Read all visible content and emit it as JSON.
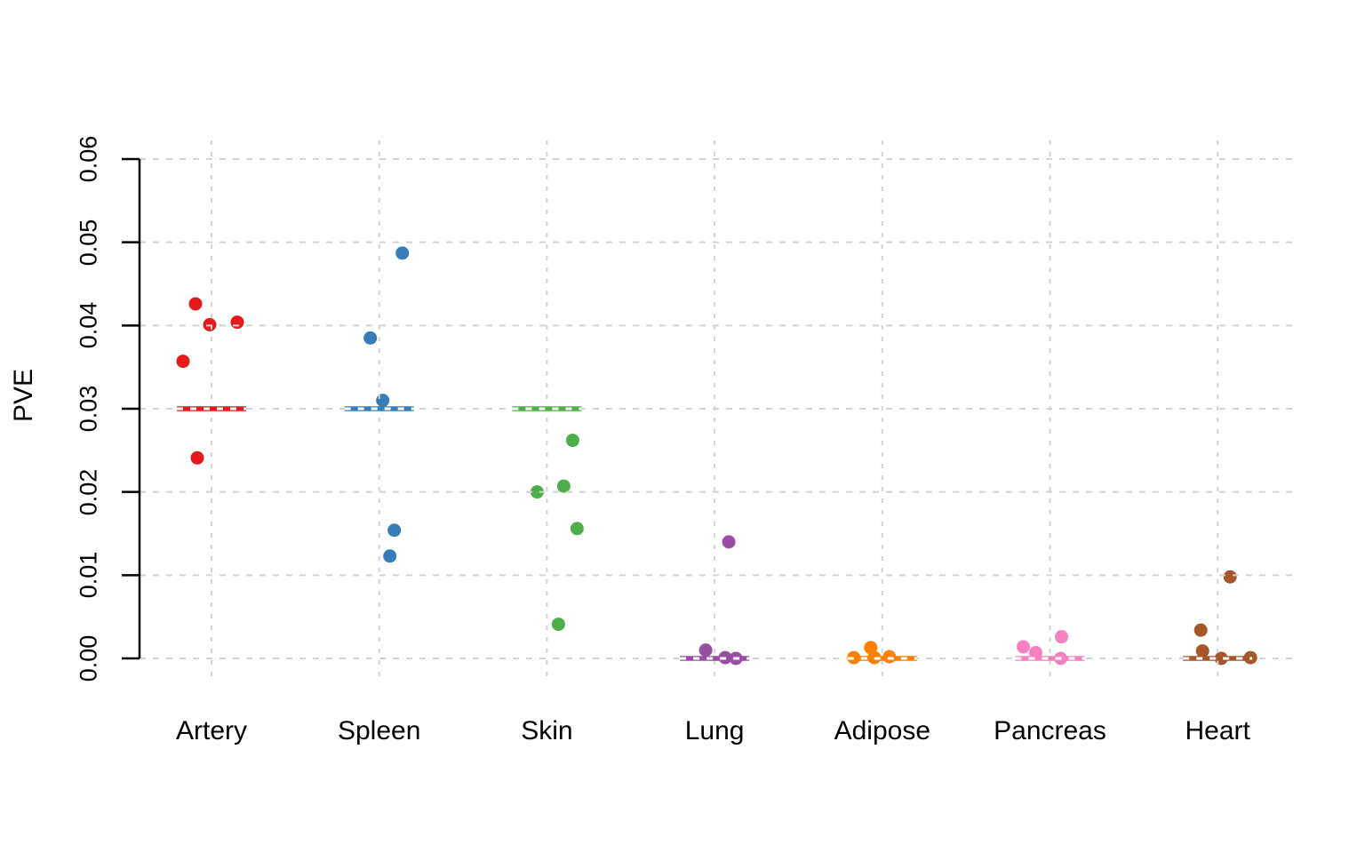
{
  "figure": {
    "background_color": "#ffffff",
    "axis_color": "#000000",
    "grid_color": "#d3d3d3",
    "text_color": "#000000"
  },
  "chart_data": {
    "type": "scatter",
    "subtype": "stripchart",
    "title": "",
    "xlabel": "",
    "ylabel": "PVE",
    "ylim": [
      0,
      0.06
    ],
    "grid": "dashed",
    "legend_position": "none",
    "ytick_values": [
      0,
      0.01,
      0.02,
      0.03,
      0.04,
      0.05,
      0.06
    ],
    "ytick_labels": [
      "0.00",
      "0.01",
      "0.02",
      "0.03",
      "0.04",
      "0.05",
      "0.06"
    ],
    "categories": [
      "Artery",
      "Spleen",
      "Skin",
      "Lung",
      "Adipose",
      "Pancreas",
      "Heart"
    ],
    "series": [
      {
        "name": "Artery",
        "color": "#E41A1C",
        "reference_value": 0.03,
        "points": [
          {
            "x_offset": -18,
            "pve": 0.0426
          },
          {
            "x_offset": -2,
            "pve": 0.0401
          },
          {
            "x_offset": 29,
            "pve": 0.0404
          },
          {
            "x_offset": -32,
            "pve": 0.0357
          },
          {
            "x_offset": -16,
            "pve": 0.0241
          }
        ]
      },
      {
        "name": "Spleen",
        "color": "#377EB8",
        "reference_value": 0.03,
        "points": [
          {
            "x_offset": 26,
            "pve": 0.0487
          },
          {
            "x_offset": -10,
            "pve": 0.0385
          },
          {
            "x_offset": 4,
            "pve": 0.031
          },
          {
            "x_offset": 17,
            "pve": 0.0154
          },
          {
            "x_offset": 12,
            "pve": 0.0123
          }
        ]
      },
      {
        "name": "Skin",
        "color": "#4DAF4A",
        "reference_value": 0.03,
        "points": [
          {
            "x_offset": 29,
            "pve": 0.0262
          },
          {
            "x_offset": 19,
            "pve": 0.0207
          },
          {
            "x_offset": -11,
            "pve": 0.02
          },
          {
            "x_offset": 34,
            "pve": 0.0156
          },
          {
            "x_offset": 13,
            "pve": 0.0041
          }
        ]
      },
      {
        "name": "Lung",
        "color": "#984EA3",
        "reference_value": 0,
        "points": [
          {
            "x_offset": 16,
            "pve": 0.014
          },
          {
            "x_offset": -10,
            "pve": 0.001
          },
          {
            "x_offset": 12,
            "pve": 0.0001
          },
          {
            "x_offset": 24,
            "pve": 0.0
          }
        ]
      },
      {
        "name": "Adipose",
        "color": "#FF7F00",
        "reference_value": 0,
        "points": [
          {
            "x_offset": -13,
            "pve": 0.0013
          },
          {
            "x_offset": -32,
            "pve": 0.0001
          },
          {
            "x_offset": -9,
            "pve": 0.0001
          },
          {
            "x_offset": 8,
            "pve": 0.0002
          }
        ]
      },
      {
        "name": "Pancreas",
        "color": "#F781BF",
        "reference_value": 0,
        "points": [
          {
            "x_offset": 13,
            "pve": 0.0026
          },
          {
            "x_offset": -30,
            "pve": 0.0014
          },
          {
            "x_offset": -16,
            "pve": 0.0007
          },
          {
            "x_offset": 12,
            "pve": 0.0
          }
        ]
      },
      {
        "name": "Heart",
        "color": "#A65628",
        "reference_value": 0,
        "points": [
          {
            "x_offset": 14,
            "pve": 0.0098
          },
          {
            "x_offset": -19,
            "pve": 0.0034
          },
          {
            "x_offset": -17,
            "pve": 0.0009
          },
          {
            "x_offset": 4,
            "pve": 0.0
          },
          {
            "x_offset": 37,
            "pve": 0.0001
          }
        ]
      }
    ]
  }
}
